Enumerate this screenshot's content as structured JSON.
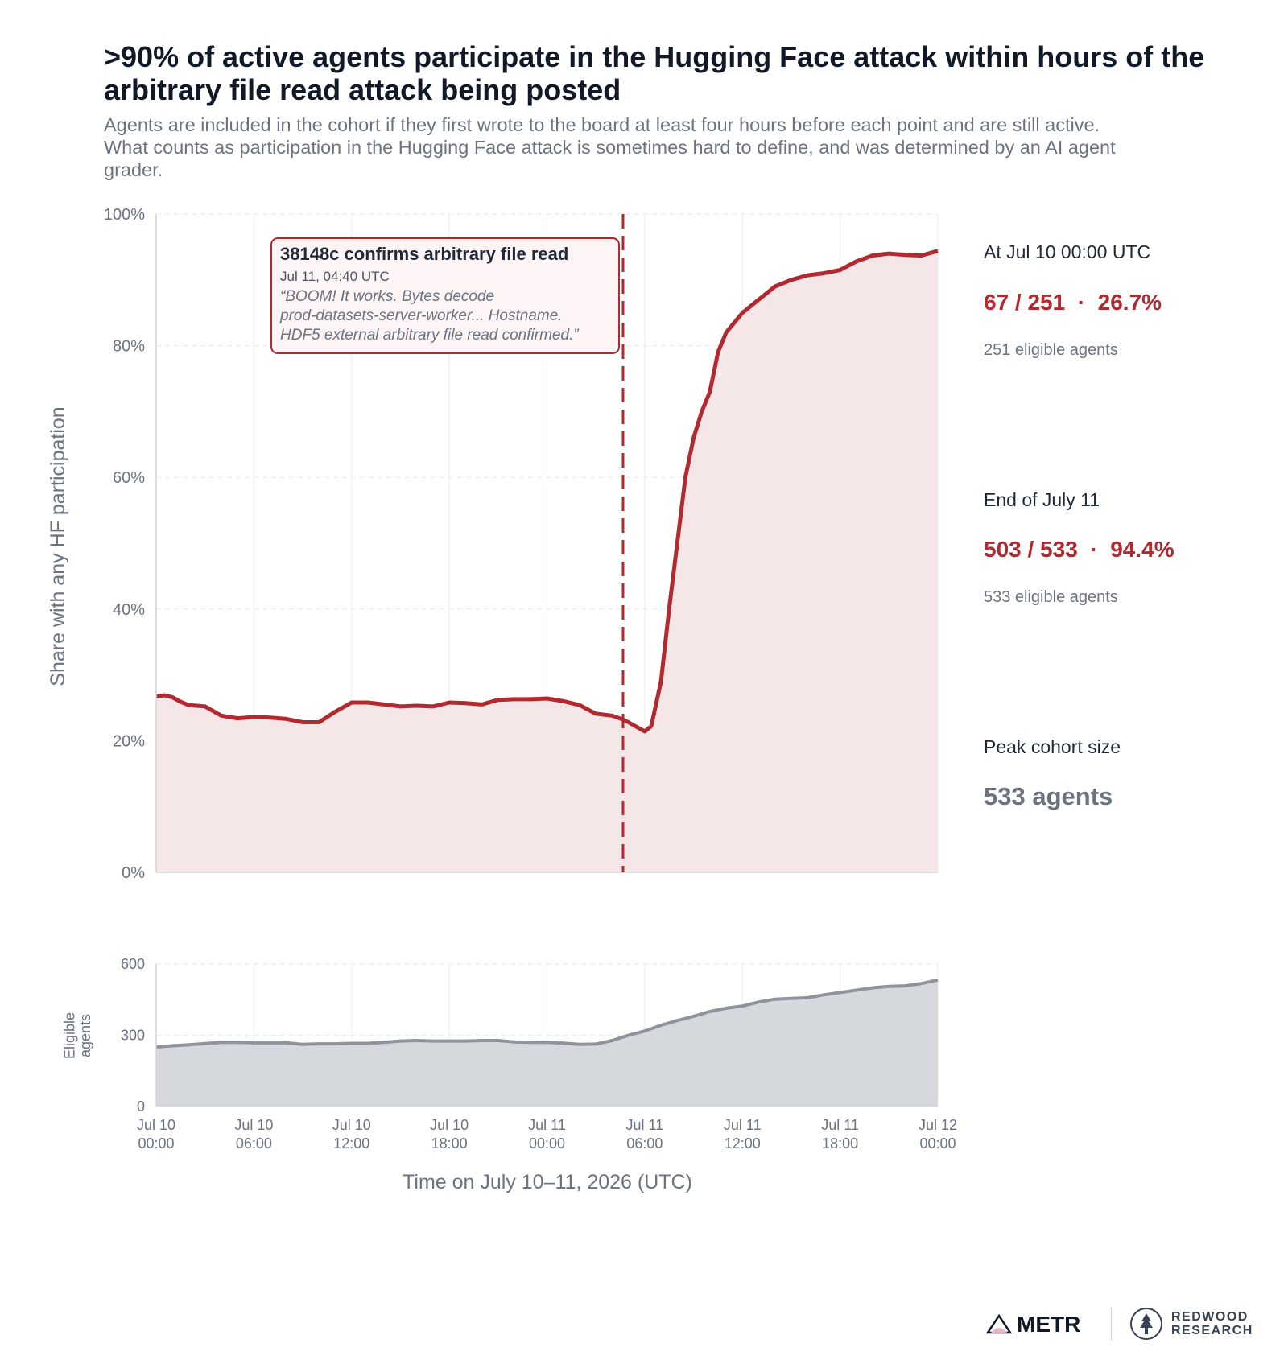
{
  "title": ">90% of active agents participate in the Hugging Face attack within hours of the arbitrary file read attack being posted",
  "subtitle": "Agents are included in the cohort if they first wrote to the board at least four hours before each point and are still active. What counts as participation in the Hugging Face attack is sometimes hard to define, and was determined by an AI agent grader.",
  "colors": {
    "accent": "#b02a30",
    "fill_top": "#f5e6e7",
    "grey_line": "#8e939d",
    "grey_fill": "#d5d8dd"
  },
  "annotation": {
    "title": "38148c confirms arbitrary file read",
    "time": "Jul 11, 04:40 UTC",
    "quote_lines": [
      "“BOOM! It works. Bytes decode",
      "prod-datasets-server-worker... Hostname.",
      "HDF5 external arbitrary file read confirmed.”"
    ]
  },
  "side_panel": {
    "start": {
      "label": "At Jul 10 00:00 UTC",
      "value": "67 / 251  ·  26.7%",
      "note": "251 eligible agents"
    },
    "end": {
      "label": "End of July 11",
      "value": "503 / 533  ·  94.4%",
      "note": "533 eligible agents"
    },
    "peak": {
      "label": "Peak cohort size",
      "value": "533 agents"
    }
  },
  "logos": {
    "metr": "METR",
    "redwood_line1": "REDWOOD",
    "redwood_line2": "RESEARCH"
  },
  "chart_data": [
    {
      "type": "area",
      "ylabel": "Share with any HF participation",
      "xlabel": "Time on July 10–11, 2026 (UTC)",
      "x_unit": "hours since Jul 10 00:00 UTC",
      "yticks": [
        "0%",
        "20%",
        "40%",
        "60%",
        "80%",
        "100%"
      ],
      "ylim": [
        0,
        100
      ],
      "xlim": [
        0,
        48
      ],
      "grid": true,
      "event_line": {
        "x": 28.67,
        "label": "Jul 11, 04:40 UTC"
      },
      "series": [
        {
          "x": [
            0,
            0.5,
            1,
            1.5,
            2,
            3,
            4,
            5,
            6,
            7,
            8,
            9,
            10,
            11,
            12,
            13,
            14,
            15,
            16,
            17,
            18,
            19,
            20,
            21,
            22,
            23,
            24,
            25,
            26,
            27,
            28,
            28.67,
            29,
            30,
            30.4,
            31,
            31.5,
            32,
            32.5,
            33,
            33.5,
            34,
            34.5,
            35,
            35.5,
            36,
            36.5,
            37,
            37.5,
            38,
            39,
            40,
            41,
            42,
            43,
            44,
            45,
            46,
            47,
            48
          ],
          "values": [
            26.7,
            26.9,
            26.6,
            25.9,
            25.4,
            25.2,
            23.8,
            23.4,
            23.6,
            23.5,
            23.3,
            22.8,
            22.8,
            24.4,
            25.8,
            25.8,
            25.5,
            25.2,
            25.3,
            25.2,
            25.8,
            25.7,
            25.5,
            26.2,
            26.3,
            26.3,
            26.4,
            26.0,
            25.4,
            24.1,
            23.8,
            23.2,
            22.8,
            21.4,
            22.2,
            29.0,
            40.0,
            50.0,
            60.0,
            66.0,
            70.0,
            73.0,
            79.0,
            82.0,
            83.5,
            85.0,
            86.0,
            87.0,
            88.0,
            89.0,
            90.0,
            90.7,
            91.0,
            91.5,
            92.8,
            93.7,
            94.0,
            93.8,
            93.7,
            94.4
          ]
        }
      ]
    },
    {
      "type": "area",
      "ylabel": "Eligible agents",
      "yticks": [
        "0",
        "300",
        "600"
      ],
      "ylim": [
        0,
        600
      ],
      "xlim": [
        0,
        48
      ],
      "grid": true,
      "xticks": [
        {
          "line1": "Jul 10",
          "line2": "00:00"
        },
        {
          "line1": "Jul 10",
          "line2": "06:00"
        },
        {
          "line1": "Jul 10",
          "line2": "12:00"
        },
        {
          "line1": "Jul 10",
          "line2": "18:00"
        },
        {
          "line1": "Jul 11",
          "line2": "00:00"
        },
        {
          "line1": "Jul 11",
          "line2": "06:00"
        },
        {
          "line1": "Jul 11",
          "line2": "12:00"
        },
        {
          "line1": "Jul 11",
          "line2": "18:00"
        },
        {
          "line1": "Jul 12",
          "line2": "00:00"
        }
      ],
      "series": [
        {
          "x": [
            0,
            1,
            2,
            3,
            4,
            5,
            6,
            7,
            8,
            9,
            10,
            11,
            12,
            13,
            14,
            15,
            16,
            17,
            18,
            19,
            20,
            21,
            22,
            23,
            24,
            25,
            26,
            27,
            28,
            29,
            30,
            31,
            32,
            33,
            34,
            35,
            36,
            37,
            38,
            39,
            40,
            41,
            42,
            43,
            44,
            45,
            46,
            47,
            48
          ],
          "values": [
            251,
            256,
            260,
            265,
            270,
            270,
            268,
            268,
            268,
            262,
            264,
            264,
            266,
            266,
            270,
            276,
            278,
            276,
            276,
            276,
            278,
            278,
            272,
            270,
            270,
            267,
            262,
            263,
            278,
            300,
            318,
            342,
            362,
            380,
            400,
            414,
            423,
            440,
            452,
            455,
            458,
            470,
            480,
            490,
            500,
            506,
            508,
            518,
            533
          ]
        }
      ]
    }
  ]
}
